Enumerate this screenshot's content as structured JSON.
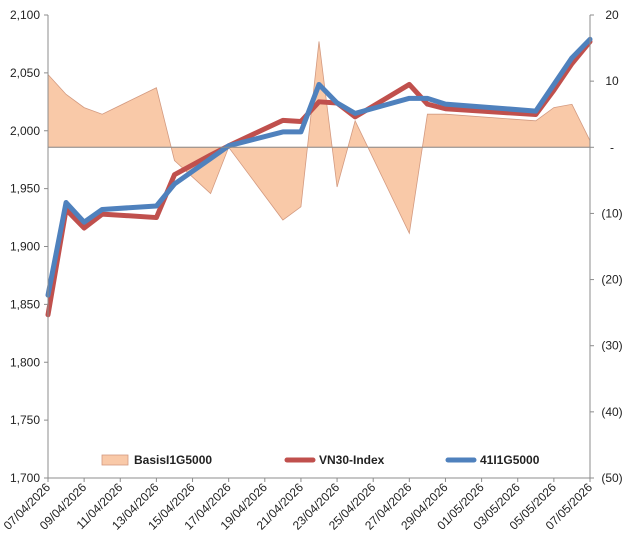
{
  "chart_data": {
    "type": "line",
    "x": [
      "07/04/2026",
      "08/04/2026",
      "09/04/2026",
      "10/04/2026",
      "13/04/2026",
      "14/04/2026",
      "16/04/2026",
      "17/04/2026",
      "20/04/2026",
      "21/04/2026",
      "22/04/2026",
      "23/04/2026",
      "24/04/2026",
      "27/04/2026",
      "28/04/2026",
      "29/04/2026",
      "04/05/2026",
      "05/05/2026",
      "06/05/2026",
      "07/05/2026"
    ],
    "x_tick_labels": [
      "07/04/2026",
      "09/04/2026",
      "11/04/2026",
      "13/04/2026",
      "15/04/2026",
      "17/04/2026",
      "19/04/2026",
      "21/04/2026",
      "23/04/2026",
      "25/04/2026",
      "27/04/2026",
      "29/04/2026",
      "01/05/2026",
      "03/05/2026",
      "05/05/2026",
      "07/05/2026"
    ],
    "y_left": {
      "ylim": [
        1700,
        2100
      ],
      "ticks": [
        "1,700",
        "1,750",
        "1,800",
        "1,850",
        "1,900",
        "1,950",
        "2,000",
        "2,050",
        "2,100"
      ]
    },
    "y_right": {
      "ylim": [
        -50,
        20
      ],
      "ticks": [
        "(50)",
        "(40)",
        "(30)",
        "(20)",
        "(10)",
        "-",
        "10",
        "20"
      ]
    },
    "series": [
      {
        "name": "BasisI1G5000",
        "type": "area",
        "axis": "right",
        "color": "#f9c9a8",
        "edge": "#d39a80",
        "values": [
          11,
          8,
          6,
          5,
          9,
          -2,
          -7,
          0,
          -11,
          -9,
          16,
          -6,
          4,
          -13,
          5,
          5,
          4,
          6,
          6.5,
          1
        ]
      },
      {
        "name": "VN30-Index",
        "type": "line",
        "axis": "left",
        "color": "#c0504d",
        "values": [
          1841,
          1932,
          1916,
          1928,
          1925,
          1962,
          1979,
          1987,
          2009,
          2008,
          2025,
          2024,
          2012,
          2040,
          2023,
          2019,
          2014,
          2035,
          2058,
          2077
        ]
      },
      {
        "name": "41I1G5000",
        "type": "line",
        "axis": "left",
        "color": "#4f81bd",
        "values": [
          1858,
          1938,
          1921,
          1932,
          1935,
          1954,
          1976,
          1987,
          1999,
          1999,
          2040,
          2024,
          2015,
          2028,
          2028,
          2023,
          2017,
          2040,
          2063,
          2079
        ]
      }
    ],
    "legend_position": "bottom",
    "grid": false
  }
}
